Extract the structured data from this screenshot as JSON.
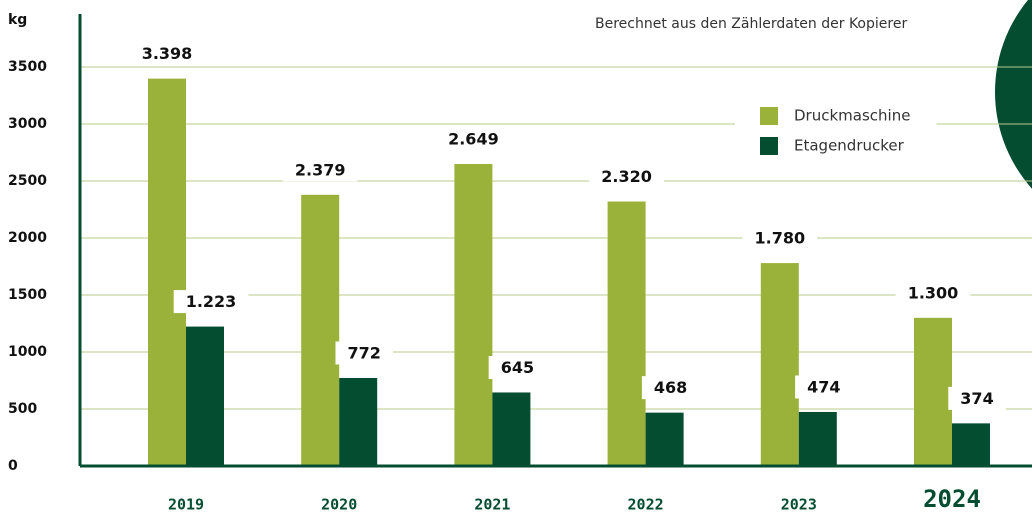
{
  "chart_data": {
    "type": "bar",
    "subtitle": "Berechnet aus den Zählerdaten der Kopierer",
    "y_label": "kg",
    "categories": [
      "2019",
      "2020",
      "2021",
      "2022",
      "2023",
      "2024"
    ],
    "series": [
      {
        "name": "Druckmaschine",
        "color": "#9bb23a",
        "values": [
          3398,
          2379,
          2649,
          2320,
          1780,
          1300
        ],
        "value_labels": [
          "3.398",
          "2.379",
          "2.649",
          "2.320",
          "1.780",
          "1.300"
        ]
      },
      {
        "name": "Etagendrucker",
        "color": "#054d31",
        "values": [
          1223,
          772,
          645,
          468,
          474,
          374
        ],
        "value_labels": [
          "1.223",
          "772",
          "645",
          "468",
          "474",
          "374"
        ]
      }
    ],
    "ylim": [
      0,
      4000
    ],
    "yticks": [
      0,
      500,
      1000,
      1500,
      2000,
      2500,
      3000,
      3500
    ],
    "grid": true,
    "legend": "upper right"
  }
}
